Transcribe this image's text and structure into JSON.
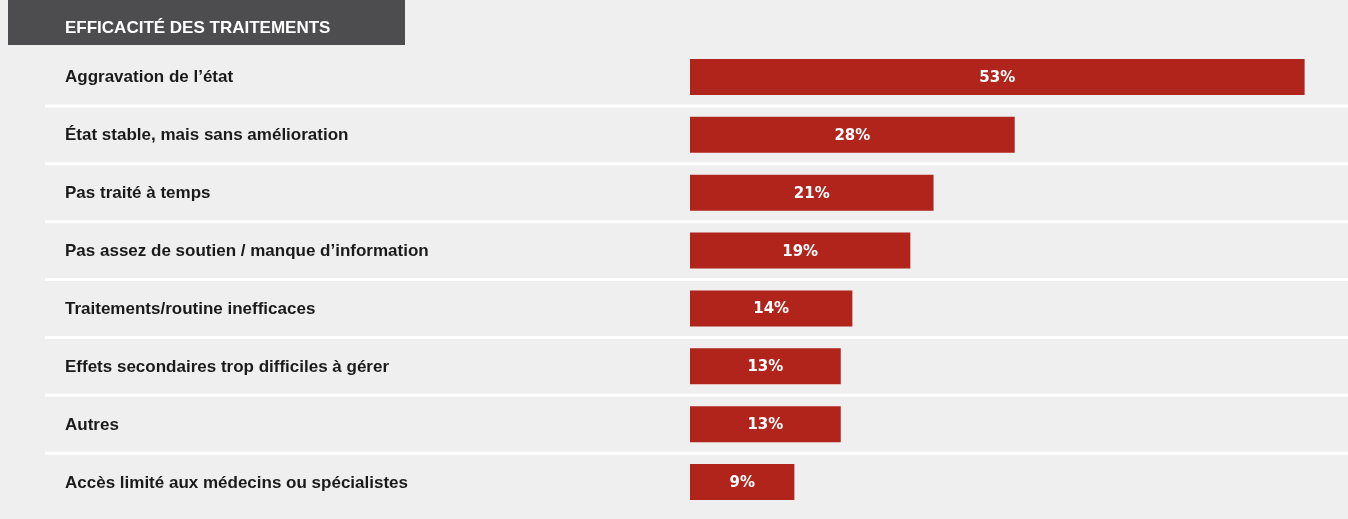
{
  "chart_data": {
    "type": "bar",
    "orientation": "horizontal",
    "title": "EFFICACITÉ DES TRAITEMENTS",
    "categories": [
      "Aggravation de l’état",
      "État stable, mais sans amélioration",
      "Pas traité à temps",
      "Pas assez de soutien / manque d’information",
      "Traitements/routine inefficaces",
      "Effets secondaires trop difficiles à gérer",
      "Autres",
      "Accès limité aux médecins ou spécialistes"
    ],
    "values": [
      53,
      28,
      21,
      19,
      14,
      13,
      13,
      9
    ],
    "value_labels": [
      "53%",
      "28%",
      "21%",
      "19%",
      "14%",
      "13%",
      "13%",
      "9%"
    ],
    "color": "#b0241c"
  }
}
